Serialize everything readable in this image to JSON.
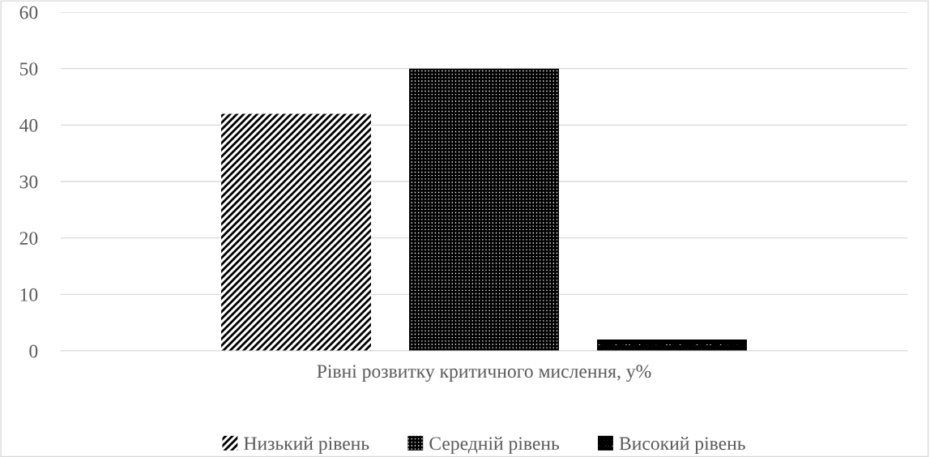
{
  "chart_data": {
    "type": "bar",
    "categories": [
      "Рівні розвитку критичного мислення, у%"
    ],
    "series": [
      {
        "name": "Низький рівень",
        "color": "#000000",
        "values": [
          42
        ]
      },
      {
        "name": "Середній рівень",
        "color": "#000000",
        "values": [
          50
        ]
      },
      {
        "name": "Високий рівень",
        "color": "#000000",
        "values": [
          2
        ]
      }
    ],
    "ylim": [
      0,
      60
    ],
    "yticks": [
      0,
      10,
      20,
      30,
      40,
      50,
      60
    ],
    "grid": "y",
    "legend": "bottom"
  }
}
